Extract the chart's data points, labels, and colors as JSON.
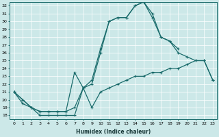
{
  "xlabel": "Humidex (Indice chaleur)",
  "bg_color": "#cce8e8",
  "line_color": "#1a6b6b",
  "xlim": [
    -0.5,
    23.5
  ],
  "ylim": [
    17.5,
    32.5
  ],
  "xticks": [
    0,
    1,
    2,
    3,
    4,
    5,
    6,
    7,
    8,
    9,
    10,
    11,
    12,
    13,
    14,
    15,
    16,
    17,
    18,
    19,
    20,
    21,
    22,
    23
  ],
  "yticks": [
    18,
    19,
    20,
    21,
    22,
    23,
    24,
    25,
    26,
    27,
    28,
    29,
    30,
    31,
    32
  ],
  "series1_x": [
    0,
    1,
    2,
    3,
    4,
    5,
    6,
    7,
    8,
    9,
    10,
    11,
    12,
    13,
    14,
    15,
    16,
    17,
    18,
    19
  ],
  "series1_y": [
    21.0,
    20.0,
    19.0,
    18.0,
    18.0,
    18.0,
    18.0,
    18.0,
    21.5,
    22.0,
    26.0,
    30.0,
    30.5,
    30.5,
    32.0,
    32.5,
    31.0,
    28.0,
    27.5,
    26.5
  ],
  "series2_x": [
    0,
    1,
    2,
    3,
    4,
    5,
    6,
    7,
    8,
    9,
    10,
    11,
    12,
    13,
    14,
    15,
    16,
    17,
    18,
    19,
    20,
    21,
    22,
    23
  ],
  "series2_y": [
    21.0,
    20.0,
    19.0,
    18.5,
    18.5,
    18.5,
    18.5,
    19.0,
    21.5,
    22.5,
    26.5,
    30.0,
    30.5,
    30.5,
    32.0,
    32.5,
    30.5,
    28.0,
    27.5,
    26.0,
    25.5,
    25.0,
    25.0,
    22.5
  ],
  "series3_x": [
    0,
    1,
    2,
    3,
    4,
    5,
    6,
    7,
    8,
    9,
    10,
    11,
    12,
    13,
    14,
    15,
    16,
    17,
    18,
    19,
    20,
    21,
    22,
    23
  ],
  "series3_y": [
    21.0,
    19.5,
    19.0,
    18.5,
    18.5,
    18.5,
    18.5,
    23.5,
    21.5,
    19.0,
    21.0,
    21.5,
    22.0,
    22.5,
    23.0,
    23.0,
    23.5,
    23.5,
    24.0,
    24.0,
    24.5,
    25.0,
    25.0,
    22.5
  ]
}
